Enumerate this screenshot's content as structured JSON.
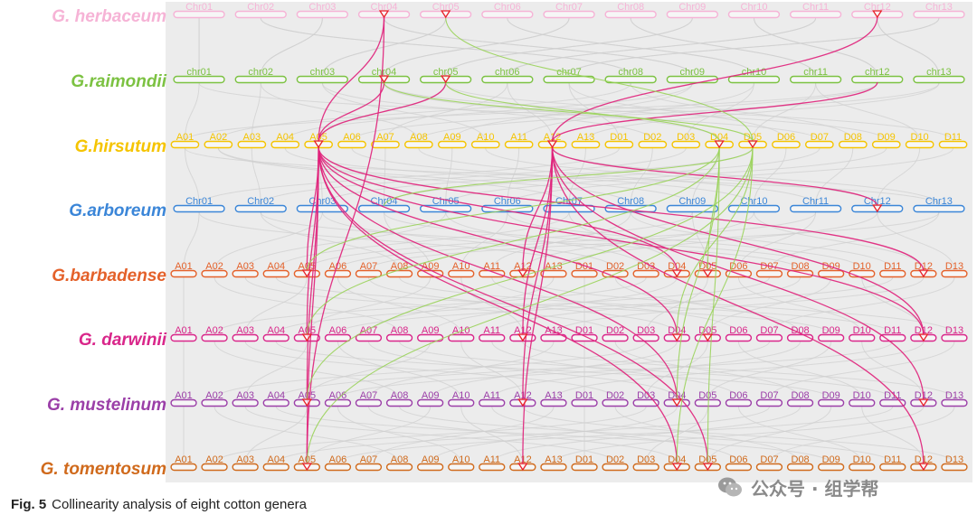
{
  "figure": {
    "caption_label": "Fig. 5",
    "caption_text": "Collinearity analysis of eight cotton genera"
  },
  "species": [
    {
      "name": "G. herbaceum",
      "color": "#f6b3d6",
      "chromosomes": [
        "Chr01",
        "Chr02",
        "Chr03",
        "Chr04",
        "Chr05",
        "Chr06",
        "Chr07",
        "Chr08",
        "Chr09",
        "Chr10",
        "Chr11",
        "Chr12",
        "Chr13"
      ]
    },
    {
      "name": "G.raimondii",
      "color": "#7cc242",
      "chromosomes": [
        "chr01",
        "chr02",
        "chr03",
        "chr04",
        "chr05",
        "chr06",
        "chr07",
        "chr08",
        "chr09",
        "chr10",
        "chr11",
        "chr12",
        "chr13"
      ]
    },
    {
      "name": "G.hirsutum",
      "color": "#f5c400",
      "chromosomes": [
        "A01",
        "A02",
        "A03",
        "A04",
        "A05",
        "A06",
        "A07",
        "A08",
        "A09",
        "A10",
        "A11",
        "A12",
        "A13",
        "D01",
        "D02",
        "D03",
        "D04",
        "D05",
        "D06",
        "D07",
        "D08",
        "D09",
        "D10",
        "D11"
      ]
    },
    {
      "name": "G.arboreum",
      "color": "#3b86d8",
      "chromosomes": [
        "Chr01",
        "Chr02",
        "Chr03",
        "Chr04",
        "Chr05",
        "Chr06",
        "Chr07",
        "Chr08",
        "Chr09",
        "Chr10",
        "Chr11",
        "Chr12",
        "Chr13"
      ]
    },
    {
      "name": "G.barbadense",
      "color": "#e4612a",
      "chromosomes": [
        "A01",
        "A02",
        "A03",
        "A04",
        "A05",
        "A06",
        "A07",
        "A08",
        "A09",
        "A10",
        "A11",
        "A12",
        "A13",
        "D01",
        "D02",
        "D03",
        "D04",
        "D05",
        "D06",
        "D07",
        "D08",
        "D09",
        "D10",
        "D11",
        "D12",
        "D13"
      ]
    },
    {
      "name": "G. darwinii",
      "color": "#d9268a",
      "chromosomes": [
        "A01",
        "A02",
        "A03",
        "A04",
        "A05",
        "A06",
        "A07",
        "A08",
        "A09",
        "A10",
        "A11",
        "A12",
        "A13",
        "D01",
        "D02",
        "D03",
        "D04",
        "D05",
        "D06",
        "D07",
        "D08",
        "D09",
        "D10",
        "D11",
        "D12",
        "D13"
      ]
    },
    {
      "name": "G. mustelinum",
      "color": "#9b3fa8",
      "chromosomes": [
        "A01",
        "A02",
        "A03",
        "A04",
        "A05",
        "A06",
        "A07",
        "A08",
        "A09",
        "A10",
        "A11",
        "A12",
        "A13",
        "D01",
        "D02",
        "D03",
        "D04",
        "D05",
        "D06",
        "D07",
        "D08",
        "D09",
        "D10",
        "D11",
        "D12",
        "D13"
      ]
    },
    {
      "name": "G. tomentosum",
      "color": "#d06a1c",
      "chromosomes": [
        "A01",
        "A02",
        "A03",
        "A04",
        "A05",
        "A06",
        "A07",
        "A08",
        "A09",
        "A10",
        "A11",
        "A12",
        "A13",
        "D01",
        "D02",
        "D03",
        "D04",
        "D05",
        "D06",
        "D07",
        "D08",
        "D09",
        "D10",
        "D11",
        "D12",
        "D13"
      ]
    }
  ],
  "link_colors": {
    "magenta": "#e0207a",
    "green": "#9ad35a",
    "marker": "#e8222a",
    "background_links": "#cfcfcf"
  },
  "markers": [
    {
      "species": 0,
      "chr": "Chr04"
    },
    {
      "species": 0,
      "chr": "Chr05"
    },
    {
      "species": 0,
      "chr": "Chr12"
    },
    {
      "species": 1,
      "chr": "chr04"
    },
    {
      "species": 1,
      "chr": "chr05"
    },
    {
      "species": 2,
      "chr": "A05"
    },
    {
      "species": 2,
      "chr": "A12"
    },
    {
      "species": 2,
      "chr": "D04"
    },
    {
      "species": 2,
      "chr": "D05"
    },
    {
      "species": 3,
      "chr": "Chr12"
    },
    {
      "species": 4,
      "chr": "A05"
    },
    {
      "species": 4,
      "chr": "A12"
    },
    {
      "species": 4,
      "chr": "D04"
    },
    {
      "species": 4,
      "chr": "D05"
    },
    {
      "species": 4,
      "chr": "D12"
    },
    {
      "species": 5,
      "chr": "A05"
    },
    {
      "species": 5,
      "chr": "A12"
    },
    {
      "species": 5,
      "chr": "D04"
    },
    {
      "species": 5,
      "chr": "D05"
    },
    {
      "species": 5,
      "chr": "D12"
    },
    {
      "species": 6,
      "chr": "A05"
    },
    {
      "species": 6,
      "chr": "A12"
    },
    {
      "species": 6,
      "chr": "D04"
    },
    {
      "species": 6,
      "chr": "D12"
    },
    {
      "species": 7,
      "chr": "A05"
    },
    {
      "species": 7,
      "chr": "A12"
    },
    {
      "species": 7,
      "chr": "D04"
    },
    {
      "species": 7,
      "chr": "D05"
    },
    {
      "species": 7,
      "chr": "D12"
    }
  ],
  "links": [
    {
      "color": "magenta",
      "from": [
        0,
        "Chr04"
      ],
      "to": [
        2,
        "A05"
      ]
    },
    {
      "color": "magenta",
      "from": [
        0,
        "Chr04"
      ],
      "to": [
        7,
        "A05"
      ]
    },
    {
      "color": "magenta",
      "from": [
        0,
        "Chr12"
      ],
      "to": [
        2,
        "A12"
      ]
    },
    {
      "color": "magenta",
      "from": [
        1,
        "chr04"
      ],
      "to": [
        2,
        "A05"
      ]
    },
    {
      "color": "magenta",
      "from": [
        1,
        "chr05"
      ],
      "to": [
        2,
        "A05"
      ]
    },
    {
      "color": "magenta",
      "from": [
        1,
        "chr12"
      ],
      "to": [
        2,
        "A12"
      ]
    },
    {
      "color": "magenta",
      "from": [
        2,
        "A05"
      ],
      "to": [
        4,
        "A05"
      ]
    },
    {
      "color": "magenta",
      "from": [
        2,
        "A05"
      ],
      "to": [
        5,
        "A05"
      ]
    },
    {
      "color": "magenta",
      "from": [
        2,
        "A05"
      ],
      "to": [
        6,
        "A05"
      ]
    },
    {
      "color": "magenta",
      "from": [
        2,
        "A05"
      ],
      "to": [
        7,
        "A05"
      ]
    },
    {
      "color": "magenta",
      "from": [
        2,
        "A05"
      ],
      "to": [
        4,
        "D04"
      ]
    },
    {
      "color": "magenta",
      "from": [
        2,
        "A05"
      ],
      "to": [
        4,
        "D12"
      ]
    },
    {
      "color": "magenta",
      "from": [
        2,
        "A05"
      ],
      "to": [
        5,
        "D04"
      ]
    },
    {
      "color": "magenta",
      "from": [
        2,
        "A05"
      ],
      "to": [
        5,
        "D12"
      ]
    },
    {
      "color": "magenta",
      "from": [
        2,
        "A05"
      ],
      "to": [
        6,
        "D04"
      ]
    },
    {
      "color": "magenta",
      "from": [
        2,
        "A05"
      ],
      "to": [
        7,
        "D04"
      ]
    },
    {
      "color": "magenta",
      "from": [
        2,
        "A05"
      ],
      "to": [
        7,
        "D05"
      ]
    },
    {
      "color": "magenta",
      "from": [
        2,
        "A12"
      ],
      "to": [
        3,
        "Chr12"
      ]
    },
    {
      "color": "magenta",
      "from": [
        2,
        "A12"
      ],
      "to": [
        4,
        "A12"
      ]
    },
    {
      "color": "magenta",
      "from": [
        2,
        "A12"
      ],
      "to": [
        5,
        "A12"
      ]
    },
    {
      "color": "magenta",
      "from": [
        2,
        "A12"
      ],
      "to": [
        6,
        "A12"
      ]
    },
    {
      "color": "magenta",
      "from": [
        2,
        "A12"
      ],
      "to": [
        7,
        "A12"
      ]
    },
    {
      "color": "magenta",
      "from": [
        2,
        "A12"
      ],
      "to": [
        5,
        "D12"
      ]
    },
    {
      "color": "magenta",
      "from": [
        2,
        "A12"
      ],
      "to": [
        6,
        "D12"
      ]
    },
    {
      "color": "magenta",
      "from": [
        2,
        "A12"
      ],
      "to": [
        7,
        "D12"
      ]
    },
    {
      "color": "green",
      "from": [
        0,
        "Chr05"
      ],
      "to": [
        2,
        "D05"
      ]
    },
    {
      "color": "green",
      "from": [
        1,
        "chr05"
      ],
      "to": [
        2,
        "D04"
      ]
    },
    {
      "color": "green",
      "from": [
        1,
        "chr04"
      ],
      "to": [
        2,
        "D05"
      ]
    },
    {
      "color": "green",
      "from": [
        2,
        "D04"
      ],
      "to": [
        4,
        "A05"
      ]
    },
    {
      "color": "green",
      "from": [
        2,
        "D04"
      ],
      "to": [
        5,
        "A05"
      ]
    },
    {
      "color": "green",
      "from": [
        2,
        "D05"
      ],
      "to": [
        6,
        "A05"
      ]
    },
    {
      "color": "green",
      "from": [
        2,
        "D05"
      ],
      "to": [
        7,
        "A05"
      ]
    },
    {
      "color": "green",
      "from": [
        2,
        "D04"
      ],
      "to": [
        4,
        "D05"
      ]
    },
    {
      "color": "green",
      "from": [
        2,
        "D05"
      ],
      "to": [
        5,
        "D04"
      ]
    },
    {
      "color": "green",
      "from": [
        2,
        "D04"
      ],
      "to": [
        6,
        "D04"
      ]
    },
    {
      "color": "green",
      "from": [
        2,
        "D05"
      ],
      "to": [
        7,
        "D04"
      ]
    },
    {
      "color": "green",
      "from": [
        2,
        "D04"
      ],
      "to": [
        7,
        "D05"
      ]
    },
    {
      "color": "green",
      "from": [
        2,
        "D05"
      ],
      "to": [
        3,
        "Chr04"
      ]
    }
  ],
  "watermark": {
    "text": "公众号 · 组学帮"
  }
}
